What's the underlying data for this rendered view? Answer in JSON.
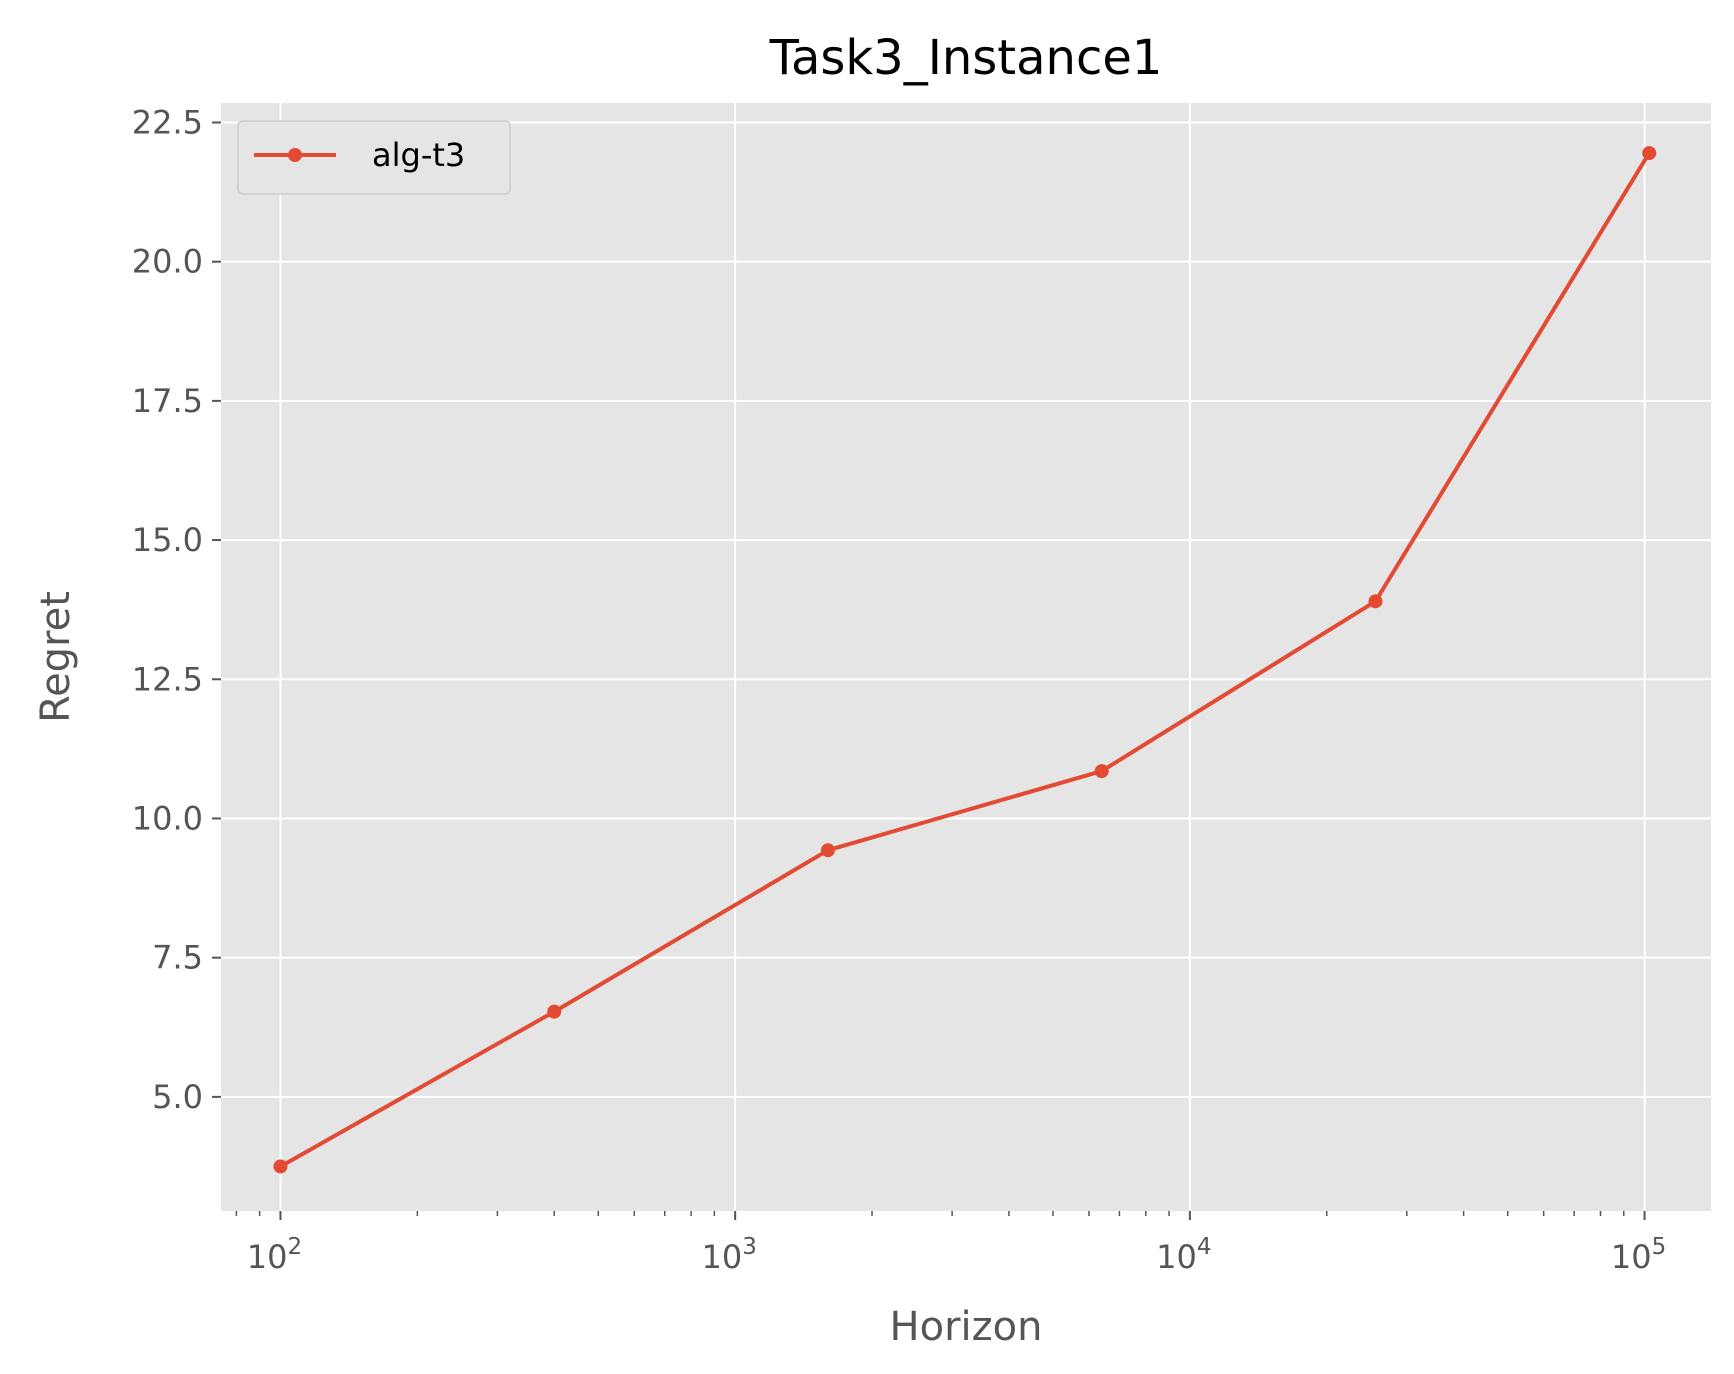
{
  "chart_data": {
    "type": "line",
    "title": "Task3_Instance1",
    "xlabel": "Horizon",
    "ylabel": "Regret",
    "xscale": "log",
    "xlim": [
      74,
      140000
    ],
    "ylim": [
      2.95,
      22.85
    ],
    "x_major_ticks": [
      {
        "value": 100,
        "base": "10",
        "exp": "2"
      },
      {
        "value": 1000,
        "base": "10",
        "exp": "3"
      },
      {
        "value": 10000,
        "base": "10",
        "exp": "4"
      },
      {
        "value": 100000,
        "base": "10",
        "exp": "5"
      }
    ],
    "y_ticks": [
      {
        "value": 5.0,
        "label": "5.0"
      },
      {
        "value": 7.5,
        "label": "7.5"
      },
      {
        "value": 10.0,
        "label": "10.0"
      },
      {
        "value": 12.5,
        "label": "12.5"
      },
      {
        "value": 15.0,
        "label": "15.0"
      },
      {
        "value": 17.5,
        "label": "17.5"
      },
      {
        "value": 20.0,
        "label": "20.0"
      },
      {
        "value": 22.5,
        "label": "22.5"
      }
    ],
    "grid": true,
    "legend_position": "upper-left",
    "series": [
      {
        "name": "alg-t3",
        "color": "#E24A33",
        "marker": "circle",
        "x": [
          100,
          400,
          1600,
          6400,
          25600,
          102400
        ],
        "y": [
          3.75,
          6.53,
          9.43,
          10.85,
          13.9,
          21.95
        ]
      }
    ]
  }
}
